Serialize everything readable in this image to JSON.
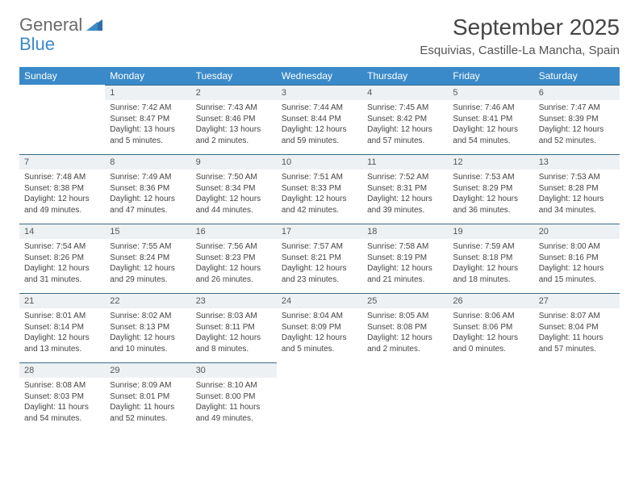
{
  "logo": {
    "general": "General",
    "blue": "Blue"
  },
  "title": "September 2025",
  "location": "Esquivias, Castille-La Mancha, Spain",
  "colors": {
    "header_bg": "#3a8ac9",
    "header_text": "#ffffff",
    "daynum_bg": "#eef1f3",
    "daynum_border": "#3a6a8c",
    "text": "#444444",
    "logo_gray": "#6a6a6a",
    "logo_blue": "#3a8ac9",
    "background": "#ffffff"
  },
  "weekdays": [
    "Sunday",
    "Monday",
    "Tuesday",
    "Wednesday",
    "Thursday",
    "Friday",
    "Saturday"
  ],
  "weeks": [
    [
      {
        "n": "",
        "sr": "",
        "ss": "",
        "dl": "",
        "empty": true
      },
      {
        "n": "1",
        "sr": "Sunrise: 7:42 AM",
        "ss": "Sunset: 8:47 PM",
        "dl": "Daylight: 13 hours and 5 minutes."
      },
      {
        "n": "2",
        "sr": "Sunrise: 7:43 AM",
        "ss": "Sunset: 8:46 PM",
        "dl": "Daylight: 13 hours and 2 minutes."
      },
      {
        "n": "3",
        "sr": "Sunrise: 7:44 AM",
        "ss": "Sunset: 8:44 PM",
        "dl": "Daylight: 12 hours and 59 minutes."
      },
      {
        "n": "4",
        "sr": "Sunrise: 7:45 AM",
        "ss": "Sunset: 8:42 PM",
        "dl": "Daylight: 12 hours and 57 minutes."
      },
      {
        "n": "5",
        "sr": "Sunrise: 7:46 AM",
        "ss": "Sunset: 8:41 PM",
        "dl": "Daylight: 12 hours and 54 minutes."
      },
      {
        "n": "6",
        "sr": "Sunrise: 7:47 AM",
        "ss": "Sunset: 8:39 PM",
        "dl": "Daylight: 12 hours and 52 minutes."
      }
    ],
    [
      {
        "n": "7",
        "sr": "Sunrise: 7:48 AM",
        "ss": "Sunset: 8:38 PM",
        "dl": "Daylight: 12 hours and 49 minutes."
      },
      {
        "n": "8",
        "sr": "Sunrise: 7:49 AM",
        "ss": "Sunset: 8:36 PM",
        "dl": "Daylight: 12 hours and 47 minutes."
      },
      {
        "n": "9",
        "sr": "Sunrise: 7:50 AM",
        "ss": "Sunset: 8:34 PM",
        "dl": "Daylight: 12 hours and 44 minutes."
      },
      {
        "n": "10",
        "sr": "Sunrise: 7:51 AM",
        "ss": "Sunset: 8:33 PM",
        "dl": "Daylight: 12 hours and 42 minutes."
      },
      {
        "n": "11",
        "sr": "Sunrise: 7:52 AM",
        "ss": "Sunset: 8:31 PM",
        "dl": "Daylight: 12 hours and 39 minutes."
      },
      {
        "n": "12",
        "sr": "Sunrise: 7:53 AM",
        "ss": "Sunset: 8:29 PM",
        "dl": "Daylight: 12 hours and 36 minutes."
      },
      {
        "n": "13",
        "sr": "Sunrise: 7:53 AM",
        "ss": "Sunset: 8:28 PM",
        "dl": "Daylight: 12 hours and 34 minutes."
      }
    ],
    [
      {
        "n": "14",
        "sr": "Sunrise: 7:54 AM",
        "ss": "Sunset: 8:26 PM",
        "dl": "Daylight: 12 hours and 31 minutes."
      },
      {
        "n": "15",
        "sr": "Sunrise: 7:55 AM",
        "ss": "Sunset: 8:24 PM",
        "dl": "Daylight: 12 hours and 29 minutes."
      },
      {
        "n": "16",
        "sr": "Sunrise: 7:56 AM",
        "ss": "Sunset: 8:23 PM",
        "dl": "Daylight: 12 hours and 26 minutes."
      },
      {
        "n": "17",
        "sr": "Sunrise: 7:57 AM",
        "ss": "Sunset: 8:21 PM",
        "dl": "Daylight: 12 hours and 23 minutes."
      },
      {
        "n": "18",
        "sr": "Sunrise: 7:58 AM",
        "ss": "Sunset: 8:19 PM",
        "dl": "Daylight: 12 hours and 21 minutes."
      },
      {
        "n": "19",
        "sr": "Sunrise: 7:59 AM",
        "ss": "Sunset: 8:18 PM",
        "dl": "Daylight: 12 hours and 18 minutes."
      },
      {
        "n": "20",
        "sr": "Sunrise: 8:00 AM",
        "ss": "Sunset: 8:16 PM",
        "dl": "Daylight: 12 hours and 15 minutes."
      }
    ],
    [
      {
        "n": "21",
        "sr": "Sunrise: 8:01 AM",
        "ss": "Sunset: 8:14 PM",
        "dl": "Daylight: 12 hours and 13 minutes."
      },
      {
        "n": "22",
        "sr": "Sunrise: 8:02 AM",
        "ss": "Sunset: 8:13 PM",
        "dl": "Daylight: 12 hours and 10 minutes."
      },
      {
        "n": "23",
        "sr": "Sunrise: 8:03 AM",
        "ss": "Sunset: 8:11 PM",
        "dl": "Daylight: 12 hours and 8 minutes."
      },
      {
        "n": "24",
        "sr": "Sunrise: 8:04 AM",
        "ss": "Sunset: 8:09 PM",
        "dl": "Daylight: 12 hours and 5 minutes."
      },
      {
        "n": "25",
        "sr": "Sunrise: 8:05 AM",
        "ss": "Sunset: 8:08 PM",
        "dl": "Daylight: 12 hours and 2 minutes."
      },
      {
        "n": "26",
        "sr": "Sunrise: 8:06 AM",
        "ss": "Sunset: 8:06 PM",
        "dl": "Daylight: 12 hours and 0 minutes."
      },
      {
        "n": "27",
        "sr": "Sunrise: 8:07 AM",
        "ss": "Sunset: 8:04 PM",
        "dl": "Daylight: 11 hours and 57 minutes."
      }
    ],
    [
      {
        "n": "28",
        "sr": "Sunrise: 8:08 AM",
        "ss": "Sunset: 8:03 PM",
        "dl": "Daylight: 11 hours and 54 minutes."
      },
      {
        "n": "29",
        "sr": "Sunrise: 8:09 AM",
        "ss": "Sunset: 8:01 PM",
        "dl": "Daylight: 11 hours and 52 minutes."
      },
      {
        "n": "30",
        "sr": "Sunrise: 8:10 AM",
        "ss": "Sunset: 8:00 PM",
        "dl": "Daylight: 11 hours and 49 minutes."
      },
      {
        "n": "",
        "sr": "",
        "ss": "",
        "dl": "",
        "empty": true
      },
      {
        "n": "",
        "sr": "",
        "ss": "",
        "dl": "",
        "empty": true
      },
      {
        "n": "",
        "sr": "",
        "ss": "",
        "dl": "",
        "empty": true
      },
      {
        "n": "",
        "sr": "",
        "ss": "",
        "dl": "",
        "empty": true
      }
    ]
  ]
}
